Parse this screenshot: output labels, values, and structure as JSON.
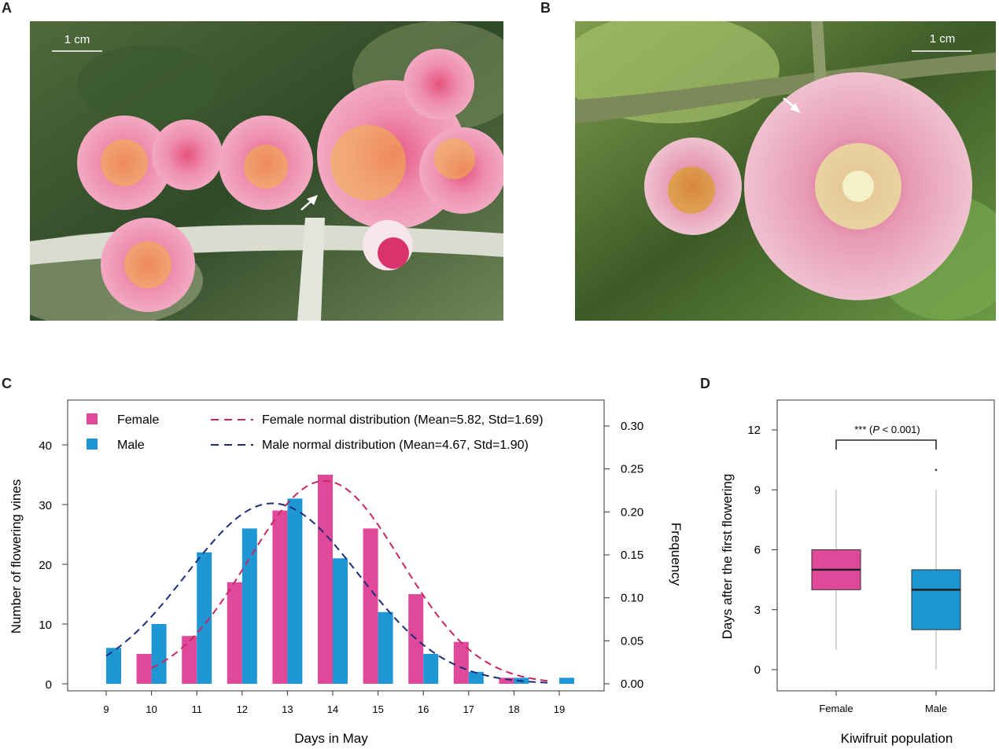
{
  "panels": {
    "a": {
      "letter": "A",
      "scale_bar": "1 cm"
    },
    "b": {
      "letter": "B",
      "scale_bar": "1 cm"
    },
    "c": {
      "letter": "C"
    },
    "d": {
      "letter": "D"
    }
  },
  "colors": {
    "female": "#e0489a",
    "male": "#1f96d4",
    "female_curve": "#c8265e",
    "male_curve": "#1e2d78"
  },
  "chart_data": [
    {
      "type": "bar",
      "panel": "C",
      "x": [
        9,
        10,
        11,
        12,
        13,
        14,
        15,
        16,
        17,
        18,
        19
      ],
      "xlabel": "Days in May",
      "ylabel": "Number of flowering vines",
      "y2label": "Frequency",
      "ylim": [
        0,
        46
      ],
      "yticks": [
        0,
        10,
        20,
        30,
        40
      ],
      "y2lim": [
        0,
        0.33
      ],
      "y2ticks": [
        "0.00",
        "0.05",
        "0.10",
        "0.15",
        "0.20",
        "0.25",
        "0.30"
      ],
      "grid": false,
      "legend_position": "top-left",
      "series": [
        {
          "name": "Female",
          "values": [
            0,
            5,
            8,
            17,
            29,
            35,
            26,
            15,
            7,
            1,
            0
          ]
        },
        {
          "name": "Male",
          "values": [
            6,
            10,
            22,
            26,
            31,
            21,
            12,
            5,
            2,
            1,
            1
          ]
        }
      ],
      "curves": [
        {
          "name": "Female normal distribution (Mean=5.82, Std=1.69)",
          "mean": 5.82,
          "std": 1.69,
          "axis": "frequency"
        },
        {
          "name": "Male normal distribution (Mean=4.67, Std=1.90)",
          "mean": 4.67,
          "std": 1.9,
          "axis": "frequency"
        }
      ]
    },
    {
      "type": "box",
      "panel": "D",
      "categories": [
        "Female",
        "Male"
      ],
      "xlabel": "Kiwifruit population",
      "ylabel": "Days after the first flowering",
      "ylim": [
        -1,
        13.5
      ],
      "yticks": [
        0,
        3,
        6,
        9,
        12
      ],
      "boxes": [
        {
          "name": "Female",
          "min": 1,
          "q1": 4,
          "median": 5,
          "q3": 6,
          "max": 9,
          "outliers": []
        },
        {
          "name": "Male",
          "min": 0,
          "q1": 2,
          "median": 4,
          "q3": 5,
          "max": 9,
          "outliers": [
            10
          ]
        }
      ],
      "significance": {
        "stars": "***",
        "p_prefix": "(",
        "p_italic": "P",
        "p_rest": " < 0.001)"
      }
    }
  ]
}
